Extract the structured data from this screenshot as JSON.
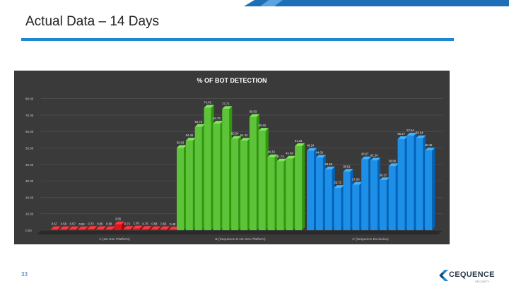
{
  "slide": {
    "title": "Actual Data – 14 Days",
    "page_number": "33",
    "accent_color": "#1e88d2"
  },
  "logo": {
    "text": "CEQUENCE",
    "subtext": "SECURITY",
    "icon": "cequence-chevron-icon"
  },
  "chart_data": {
    "type": "bar",
    "title": "% OF BOT DETECTION",
    "ylim": [
      0,
      85
    ],
    "yticks": [
      "0.00",
      "10.00",
      "20.00",
      "30.00",
      "40.00",
      "50.00",
      "60.00",
      "70.00",
      "80.00"
    ],
    "groups": [
      {
        "label": "A (1st Gen Platform)",
        "color": "#e0141e",
        "values": [
          0.57,
          0.58,
          0.57,
          0.52,
          0.73,
          0.65,
          0.58,
          3.55,
          0.73,
          1.03,
          0.75,
          0.58,
          0.63,
          0.48
        ]
      },
      {
        "label": "B (Sequence & 1st Gen Platform)",
        "color": "#5dc43a",
        "values": [
          50.03,
          54.46,
          62.78,
          74.45,
          64.78,
          73.71,
          55.54,
          54.43,
          68.83,
          60.48,
          44.33,
          41.74,
          43.49,
          51.16
        ]
      },
      {
        "label": "C (Sequence Exclusive)",
        "color": "#1e8fe6",
        "values": [
          48.24,
          44.03,
          36.96,
          25.72,
          35.51,
          27.6,
          43.07,
          42.34,
          30.37,
          38.88,
          55.37,
          57.54,
          55.94,
          48.45
        ]
      }
    ]
  }
}
